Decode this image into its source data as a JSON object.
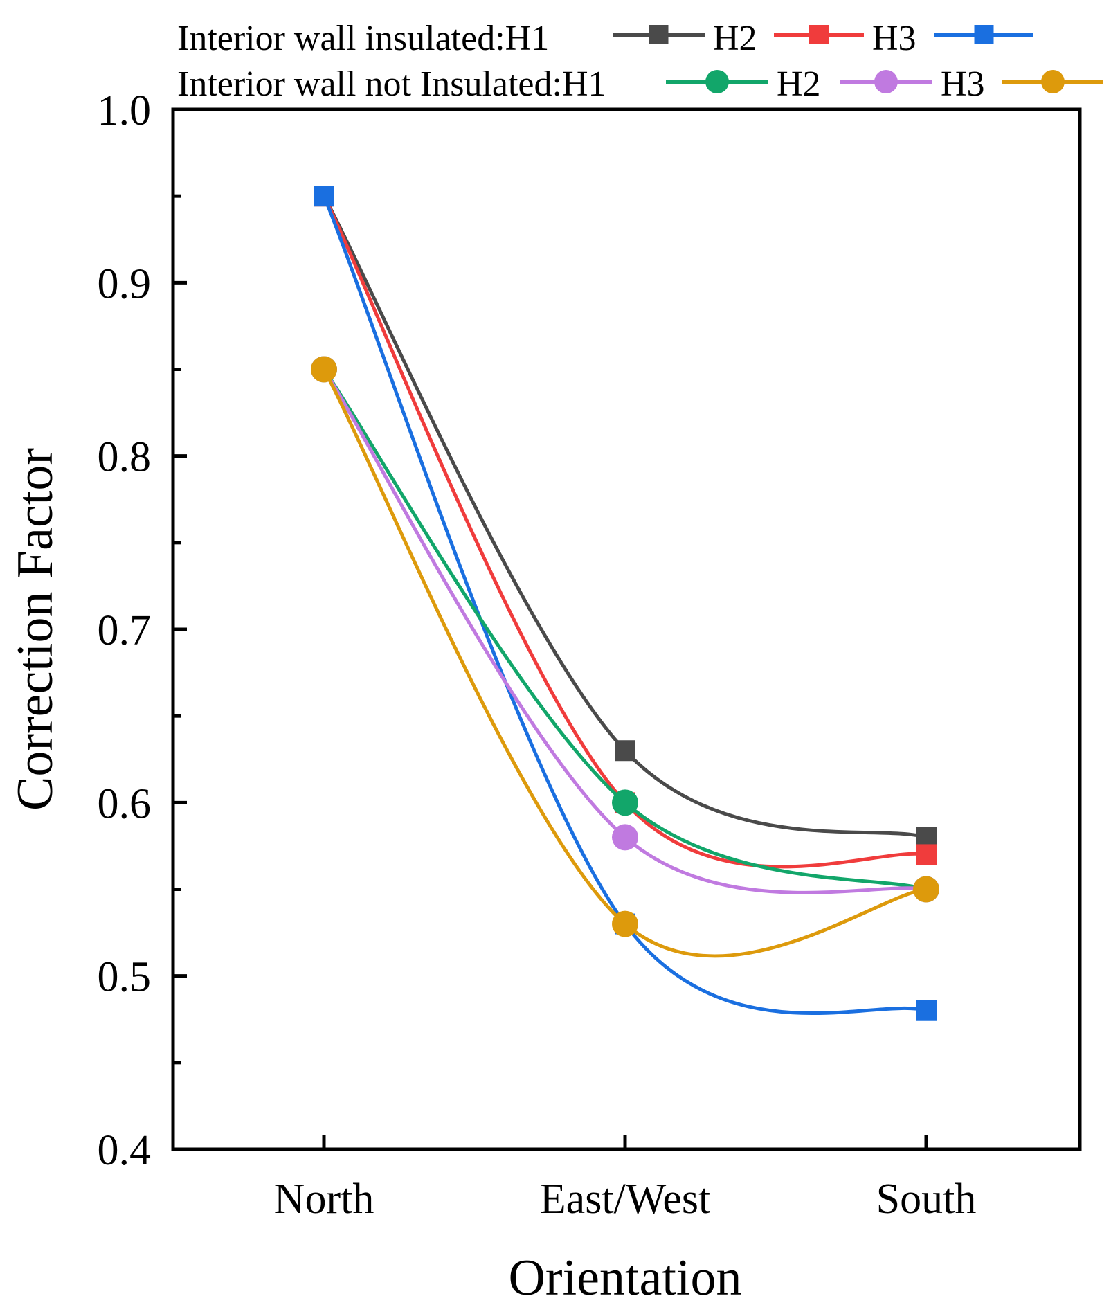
{
  "chart_data": {
    "type": "line",
    "xlabel": "Orientation",
    "ylabel": "Correction Factor",
    "ylim": [
      0.4,
      1.0
    ],
    "yticks": [
      "0.4",
      "0.5",
      "0.6",
      "0.7",
      "0.8",
      "0.9",
      "1.0"
    ],
    "categories": [
      "North",
      "East/West",
      "South"
    ],
    "legend": {
      "row1_label": "Interior wall insulated:",
      "row2_label": "Interior wall not Insulated:",
      "position": "top"
    },
    "series": [
      {
        "name": "H1",
        "group": "Interior wall insulated",
        "marker": "square",
        "color": "#4a4a4a",
        "values": [
          0.95,
          0.63,
          0.58
        ]
      },
      {
        "name": "H2",
        "group": "Interior wall insulated",
        "marker": "square",
        "color": "#f03c3c",
        "values": [
          0.95,
          0.6,
          0.57
        ]
      },
      {
        "name": "H3",
        "group": "Interior wall insulated",
        "marker": "square",
        "color": "#1a6fe0",
        "values": [
          0.95,
          0.53,
          0.48
        ]
      },
      {
        "name": "H1",
        "group": "Interior wall not Insulated",
        "marker": "circle",
        "color": "#12a66a",
        "values": [
          0.85,
          0.6,
          0.55
        ]
      },
      {
        "name": "H2",
        "group": "Interior wall not Insulated",
        "marker": "circle",
        "color": "#c07ae0",
        "values": [
          0.85,
          0.58,
          0.55
        ]
      },
      {
        "name": "H3",
        "group": "Interior wall not Insulated",
        "marker": "circle",
        "color": "#dd9a0c",
        "values": [
          0.85,
          0.53,
          0.55
        ]
      }
    ]
  }
}
